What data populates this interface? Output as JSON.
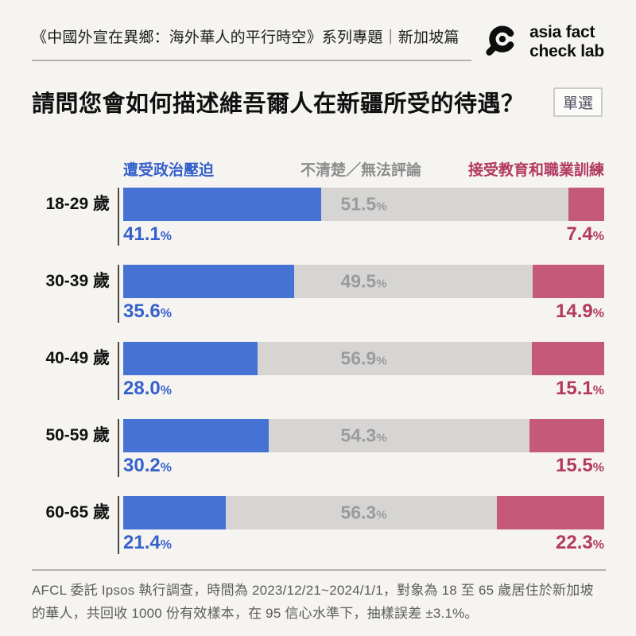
{
  "header": {
    "series_title": "《中國外宣在異鄉：海外華人的平行時空》系列專題｜新加坡篇",
    "logo": {
      "line1": "asia fact",
      "line2": "check lab"
    }
  },
  "question": {
    "title": "請問您會如何描述維吾爾人在新疆所受的待遇？",
    "badge": "單選"
  },
  "legend": {
    "blue": "遭受政治壓迫",
    "gray": "不清楚／無法評論",
    "pink": "接受教育和職業訓練"
  },
  "unit": "%",
  "colors": {
    "background": "#f6f4f1",
    "bar_blue": "#4673d3",
    "bar_gray": "#d7d5d3",
    "bar_pink": "#c5597b",
    "text_blue": "#3561cb",
    "text_gray": "#9b9b9b",
    "text_pink": "#b23a62",
    "rule_gray": "#b3b1ae"
  },
  "chart_data": {
    "type": "bar",
    "orientation": "horizontal-stacked",
    "title": "請問您會如何描述維吾爾人在新疆所受的待遇？",
    "categories": [
      "18-29 歲",
      "30-39 歲",
      "40-49 歲",
      "50-59 歲",
      "60-65 歲"
    ],
    "series": [
      {
        "name": "遭受政治壓迫",
        "color": "#4673d3",
        "values": [
          41.1,
          35.6,
          28.0,
          30.2,
          21.4
        ]
      },
      {
        "name": "不清楚／無法評論",
        "color": "#d7d5d3",
        "values": [
          51.5,
          49.5,
          56.9,
          54.3,
          56.3
        ]
      },
      {
        "name": "接受教育和職業訓練",
        "color": "#c5597b",
        "values": [
          7.4,
          14.9,
          15.1,
          15.5,
          22.3
        ]
      }
    ],
    "unit": "%",
    "xlim": [
      0,
      100
    ],
    "grid": false,
    "legend_position": "top"
  },
  "rows": [
    {
      "age": "18-29 歲",
      "blue": "41.1",
      "gray": "51.5",
      "pink": "7.4"
    },
    {
      "age": "30-39 歲",
      "blue": "35.6",
      "gray": "49.5",
      "pink": "14.9"
    },
    {
      "age": "40-49 歲",
      "blue": "28.0",
      "gray": "56.9",
      "pink": "15.1"
    },
    {
      "age": "50-59 歲",
      "blue": "30.2",
      "gray": "54.3",
      "pink": "15.5"
    },
    {
      "age": "60-65 歲",
      "blue": "21.4",
      "gray": "56.3",
      "pink": "22.3"
    }
  ],
  "footer": {
    "note": "AFCL 委託 Ipsos 執行調查，時間為 2023/12/21~2024/1/1，對象為 18 至 65 歲居住於新加坡的華人，共回收 1000 份有效樣本，在 95 信心水準下，抽樣誤差 ±3.1%。"
  }
}
